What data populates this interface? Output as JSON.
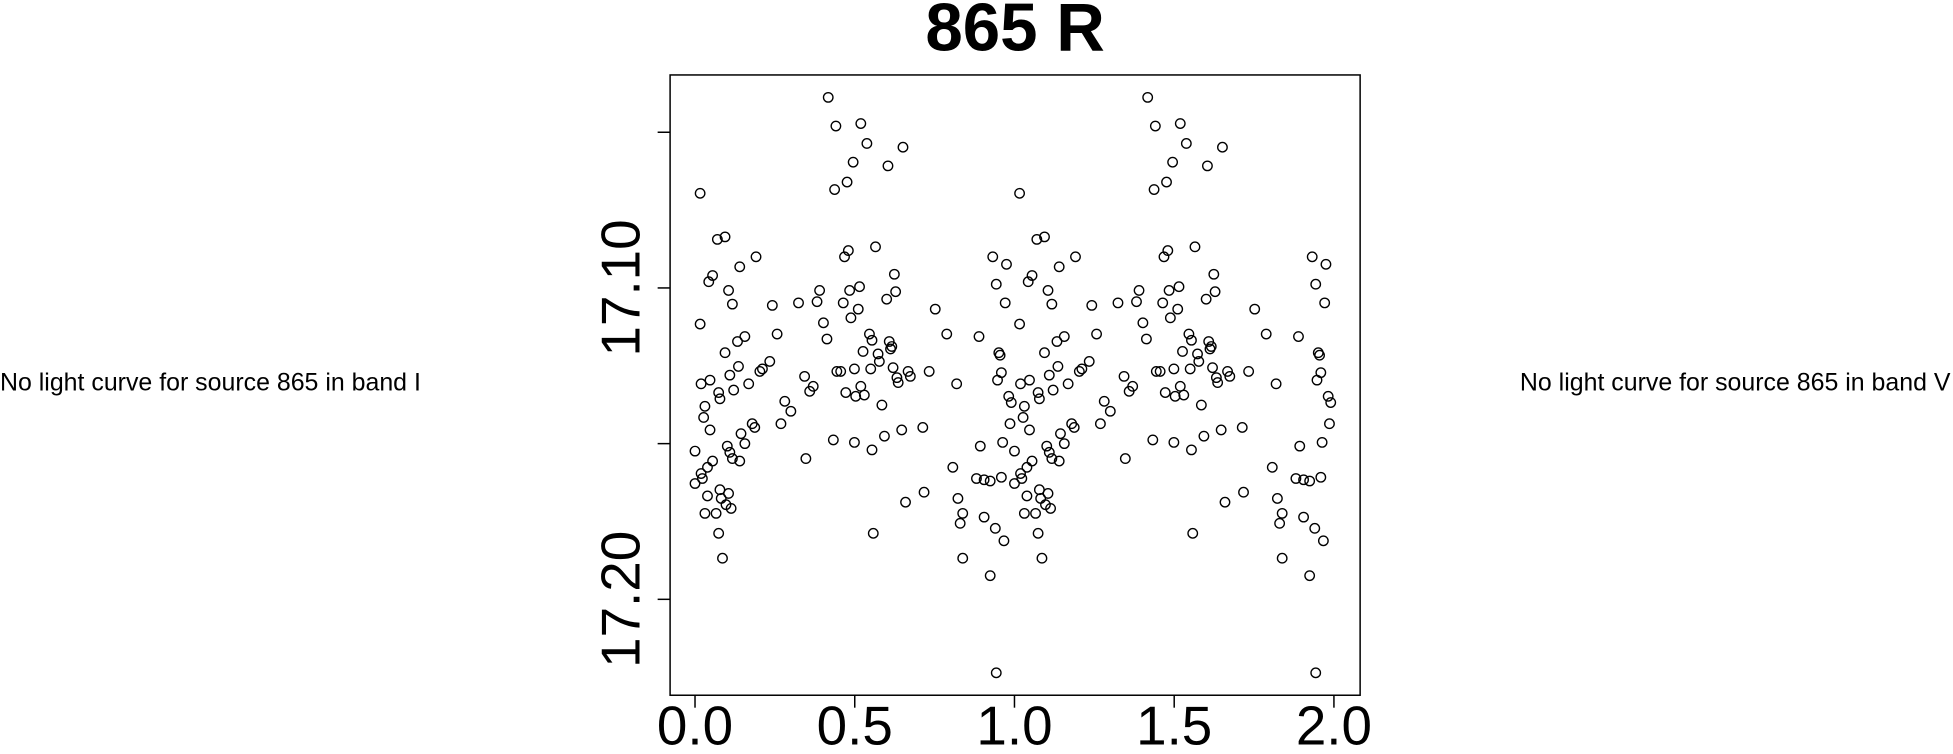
{
  "chart_data": {
    "type": "scatter",
    "title": "865 R",
    "annotations": [
      "No light curve for source 865 in band I",
      "No light curve for source 865 in band V"
    ],
    "color": "#000000",
    "x": [
      0,
      0,
      0.016,
      0.016,
      0.019,
      0.027,
      0.019,
      0.023,
      0.031,
      0.031,
      0.043,
      0.055,
      0.047,
      0.039,
      0.047,
      0.039,
      0.055,
      0.07,
      0.074,
      0.078,
      0.066,
      0.074,
      0.078,
      0.086,
      0.082,
      0.094,
      0.105,
      0.094,
      0.109,
      0.101,
      0.109,
      0.097,
      0.105,
      0.117,
      0.121,
      0.117,
      0.113,
      0.133,
      0.136,
      0.14,
      0.144,
      0.14,
      0.156,
      0.156,
      0.168,
      0.179,
      0.187,
      0.191,
      0.203,
      0.211,
      0.234,
      0.242,
      0.257,
      0.269,
      0.281,
      0.3,
      0.324,
      0.343,
      0.347,
      0.359,
      0.37,
      0.382,
      0.39,
      0.402,
      0.413,
      0.417,
      0.433,
      0.437,
      0.441,
      0.444,
      0.456,
      0.464,
      0.468,
      0.476,
      0.472,
      0.48,
      0.484,
      0.488,
      0.495,
      0.499,
      0.499,
      0.503,
      0.511,
      0.515,
      0.519,
      0.519,
      0.526,
      0.53,
      0.538,
      0.546,
      0.55,
      0.554,
      0.554,
      0.558,
      0.565,
      0.573,
      0.577,
      0.585,
      0.593,
      0.6,
      0.604,
      0.608,
      0.612,
      0.616,
      0.62,
      0.624,
      0.628,
      0.632,
      0.636,
      0.651,
      0.647,
      0.659,
      0.667,
      0.674,
      0.713,
      0.717,
      0.733,
      0.752,
      0.788,
      0.807,
      0.819,
      0.823,
      0.83,
      0.838,
      0.838,
      0.881,
      0.889,
      0.893,
      0.905,
      0.905,
      0.924,
      0.924,
      0.932,
      0.94,
      0.943,
      0.943,
      0.947,
      0.951,
      0.955,
      0.959,
      0.959,
      0.963,
      0.967,
      0.971,
      0.975,
      0.982,
      0.986,
      0.99,
      1,
      1,
      1.016,
      1.016,
      1.019,
      1.027,
      1.019,
      1.023,
      1.031,
      1.031,
      1.043,
      1.055,
      1.047,
      1.039,
      1.047,
      1.039,
      1.055,
      1.07,
      1.074,
      1.078,
      1.066,
      1.074,
      1.078,
      1.086,
      1.082,
      1.094,
      1.105,
      1.094,
      1.109,
      1.101,
      1.109,
      1.097,
      1.105,
      1.117,
      1.121,
      1.117,
      1.113,
      1.133,
      1.136,
      1.14,
      1.144,
      1.14,
      1.156,
      1.156,
      1.168,
      1.179,
      1.187,
      1.191,
      1.203,
      1.211,
      1.234,
      1.242,
      1.257,
      1.269,
      1.281,
      1.3,
      1.324,
      1.343,
      1.347,
      1.359,
      1.37,
      1.382,
      1.39,
      1.402,
      1.413,
      1.417,
      1.433,
      1.437,
      1.441,
      1.444,
      1.456,
      1.464,
      1.468,
      1.476,
      1.472,
      1.48,
      1.484,
      1.488,
      1.495,
      1.499,
      1.499,
      1.503,
      1.511,
      1.515,
      1.519,
      1.519,
      1.526,
      1.53,
      1.538,
      1.546,
      1.55,
      1.554,
      1.554,
      1.558,
      1.565,
      1.573,
      1.577,
      1.585,
      1.593,
      1.6,
      1.604,
      1.608,
      1.612,
      1.616,
      1.62,
      1.624,
      1.628,
      1.632,
      1.636,
      1.651,
      1.647,
      1.659,
      1.667,
      1.674,
      1.713,
      1.717,
      1.733,
      1.752,
      1.788,
      1.807,
      1.819,
      1.823,
      1.83,
      1.838,
      1.838,
      1.881,
      1.889,
      1.893,
      1.905,
      1.905,
      1.924,
      1.924,
      1.932,
      1.94,
      1.943,
      1.943,
      1.947,
      1.951,
      1.955,
      1.959,
      1.959,
      1.963,
      1.967,
      1.971,
      1.975,
      1.982,
      1.986,
      1.99
    ],
    "values": [
      17.1524,
      17.1628,
      17.0696,
      17.1116,
      17.1308,
      17.1416,
      17.1596,
      17.1612,
      17.138,
      17.1724,
      17.098,
      17.096,
      17.1296,
      17.1576,
      17.1456,
      17.1668,
      17.1556,
      17.0844,
      17.1336,
      17.1356,
      17.1724,
      17.1788,
      17.1648,
      17.1868,
      17.1676,
      17.0836,
      17.1008,
      17.1208,
      17.128,
      17.1508,
      17.1528,
      17.1696,
      17.166,
      17.1052,
      17.1328,
      17.1548,
      17.1708,
      17.1172,
      17.1252,
      17.0932,
      17.1468,
      17.1556,
      17.1156,
      17.15,
      17.1308,
      17.1436,
      17.1448,
      17.09,
      17.1268,
      17.126,
      17.1236,
      17.1056,
      17.1148,
      17.1436,
      17.1364,
      17.1396,
      17.1048,
      17.1284,
      17.1548,
      17.1332,
      17.1316,
      17.1044,
      17.1008,
      17.1112,
      17.1164,
      17.0388,
      17.1488,
      17.0684,
      17.048,
      17.1268,
      17.1268,
      17.1048,
      17.09,
      17.066,
      17.1336,
      17.088,
      17.1008,
      17.1096,
      17.0596,
      17.126,
      17.1496,
      17.1348,
      17.1068,
      17.0996,
      17.0472,
      17.1316,
      17.1204,
      17.1344,
      17.0536,
      17.1148,
      17.126,
      17.1168,
      17.152,
      17.1788,
      17.0868,
      17.1212,
      17.1236,
      17.1376,
      17.1476,
      17.1036,
      17.0608,
      17.1172,
      17.1196,
      17.1188,
      17.1256,
      17.0956,
      17.1012,
      17.1288,
      17.1304,
      17.0548,
      17.1456,
      17.1688,
      17.1268,
      17.1284,
      17.1448,
      17.1656,
      17.1268,
      17.1068,
      17.1148,
      17.1576,
      17.1308,
      17.1676,
      17.1756,
      17.1868,
      17.1724,
      17.1612,
      17.1156,
      17.1508,
      17.1616,
      17.1736,
      17.162,
      17.1924,
      17.09,
      17.1772,
      17.0988,
      17.2236,
      17.1296,
      17.1208,
      17.1216,
      17.1272,
      17.1608,
      17.1496,
      17.1812,
      17.1048,
      17.0924,
      17.1348,
      17.1436,
      17.1368,
      17.1524,
      17.1628,
      17.0696,
      17.1116,
      17.1308,
      17.1416,
      17.1596,
      17.1612,
      17.138,
      17.1724,
      17.098,
      17.096,
      17.1296,
      17.1576,
      17.1456,
      17.1668,
      17.1556,
      17.0844,
      17.1336,
      17.1356,
      17.1724,
      17.1788,
      17.1648,
      17.1868,
      17.1676,
      17.0836,
      17.1008,
      17.1208,
      17.128,
      17.1508,
      17.1528,
      17.1696,
      17.166,
      17.1052,
      17.1328,
      17.1548,
      17.1708,
      17.1172,
      17.1252,
      17.0932,
      17.1468,
      17.1556,
      17.1156,
      17.15,
      17.1308,
      17.1436,
      17.1448,
      17.09,
      17.1268,
      17.126,
      17.1236,
      17.1056,
      17.1148,
      17.1436,
      17.1364,
      17.1396,
      17.1048,
      17.1284,
      17.1548,
      17.1332,
      17.1316,
      17.1044,
      17.1008,
      17.1112,
      17.1164,
      17.0388,
      17.1488,
      17.0684,
      17.048,
      17.1268,
      17.1268,
      17.1048,
      17.09,
      17.066,
      17.1336,
      17.088,
      17.1008,
      17.1096,
      17.0596,
      17.126,
      17.1496,
      17.1348,
      17.1068,
      17.0996,
      17.0472,
      17.1316,
      17.1204,
      17.1344,
      17.0536,
      17.1148,
      17.126,
      17.1168,
      17.152,
      17.1788,
      17.0868,
      17.1212,
      17.1236,
      17.1376,
      17.1476,
      17.1036,
      17.0608,
      17.1172,
      17.1196,
      17.1188,
      17.1256,
      17.0956,
      17.1012,
      17.1288,
      17.1304,
      17.0548,
      17.1456,
      17.1688,
      17.1268,
      17.1284,
      17.1448,
      17.1656,
      17.1268,
      17.1068,
      17.1148,
      17.1576,
      17.1308,
      17.1676,
      17.1756,
      17.1868,
      17.1724,
      17.1612,
      17.1156,
      17.1508,
      17.1616,
      17.1736,
      17.162,
      17.1924,
      17.09,
      17.1772,
      17.0988,
      17.2236,
      17.1296,
      17.1208,
      17.1216,
      17.1272,
      17.1608,
      17.1496,
      17.1812,
      17.1048,
      17.0924,
      17.1348,
      17.1436,
      17.1368
    ],
    "xlim": [
      -0.078,
      2.082
    ],
    "xticks": [
      {
        "value": 0,
        "label": "0.0"
      },
      {
        "value": 0.5,
        "label": "0.5"
      },
      {
        "value": 1,
        "label": "1.0"
      },
      {
        "value": 1.5,
        "label": "1.5"
      },
      {
        "value": 2,
        "label": "2.0"
      }
    ],
    "ylim": [
      17.2308,
      17.0316
    ],
    "yticks": [
      {
        "value": 17.1,
        "label": "17.10"
      },
      {
        "value": 17.2,
        "label": "17.20"
      }
    ],
    "yminor_ticks": [
      17.05,
      17.15
    ]
  }
}
